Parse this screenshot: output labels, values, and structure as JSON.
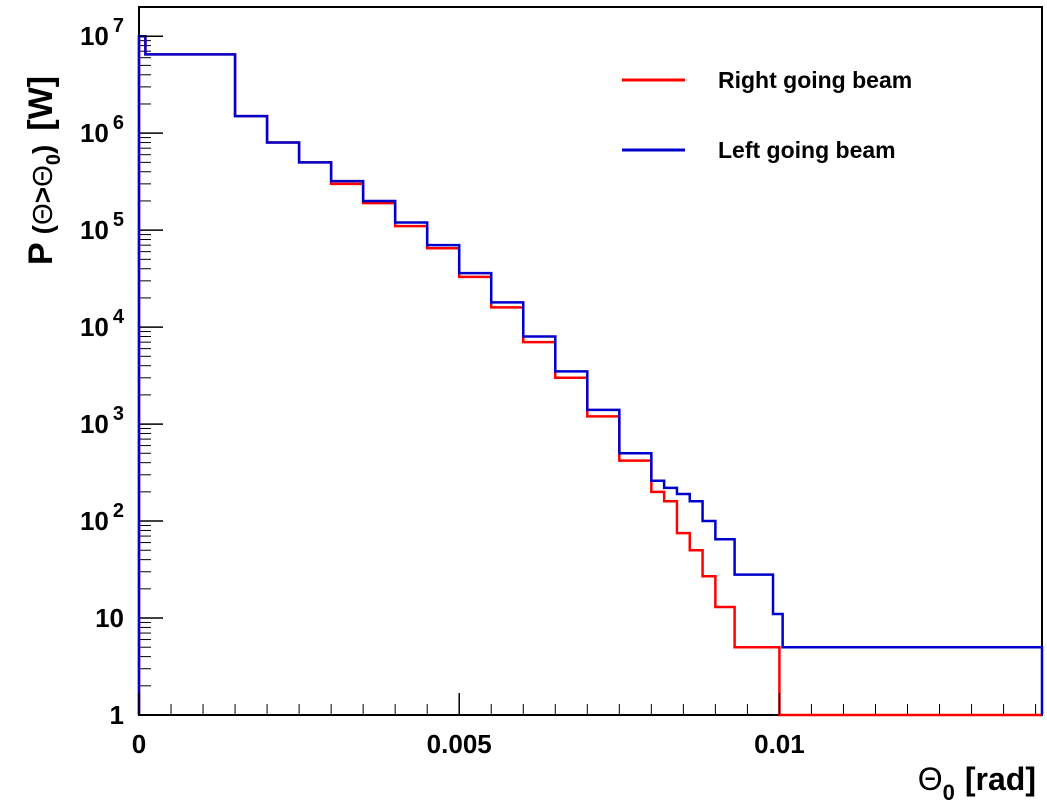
{
  "chart_data": {
    "type": "line",
    "title": "",
    "xlabel": "Θ₀ [rad]",
    "ylabel": "P (Θ>Θ₀) [W]",
    "xlabel_parts": {
      "symbol": "Θ",
      "sub": "0",
      "unit": "[rad]"
    },
    "ylabel_parts": {
      "p": "P",
      "open": "(",
      "theta": "Θ",
      "gt": ">",
      "theta0": "Θ",
      "sub": "0",
      "close": ")",
      "unit": "[W]"
    },
    "xlim": [
      0,
      0.0141
    ],
    "ylim": [
      1,
      20000000
    ],
    "y_scale": "log",
    "grid": false,
    "legend_position": "top-right",
    "x_ticks": [
      "0",
      "0.005",
      "0.01"
    ],
    "y_ticks": [
      {
        "base": "1",
        "exp": ""
      },
      {
        "base": "10",
        "exp": ""
      },
      {
        "base": "10",
        "exp": "2"
      },
      {
        "base": "10",
        "exp": "3"
      },
      {
        "base": "10",
        "exp": "4"
      },
      {
        "base": "10",
        "exp": "5"
      },
      {
        "base": "10",
        "exp": "6"
      },
      {
        "base": "10",
        "exp": "7"
      }
    ],
    "series": [
      {
        "name": "Right going beam",
        "color": "#ff0000",
        "x": [
          0,
          0.0001,
          0.0015,
          0.002,
          0.0025,
          0.003,
          0.0035,
          0.004,
          0.0045,
          0.005,
          0.0055,
          0.006,
          0.0065,
          0.007,
          0.0075,
          0.008,
          0.0082,
          0.0084,
          0.0086,
          0.0088,
          0.009,
          0.0093,
          0.0096,
          0.0099,
          0.01,
          0.0141
        ],
        "values": [
          10000000,
          6500000,
          1500000,
          800000,
          500000,
          300000,
          190000,
          110000,
          65000,
          33000,
          16000,
          7000,
          3000,
          1200,
          420,
          200,
          160,
          75,
          50,
          27,
          13,
          5,
          5,
          5,
          1,
          1
        ]
      },
      {
        "name": "Left going beam",
        "color": "#0000cc",
        "x": [
          0,
          0.0001,
          0.0015,
          0.002,
          0.0025,
          0.003,
          0.0035,
          0.004,
          0.0045,
          0.005,
          0.0055,
          0.006,
          0.0065,
          0.007,
          0.0075,
          0.008,
          0.0082,
          0.0084,
          0.0086,
          0.0088,
          0.009,
          0.0093,
          0.0096,
          0.0099,
          0.01005,
          0.0141
        ],
        "values": [
          10000000,
          6500000,
          1500000,
          800000,
          500000,
          320000,
          200000,
          120000,
          70000,
          36000,
          18000,
          8000,
          3500,
          1400,
          500,
          260,
          220,
          190,
          160,
          100,
          65,
          28,
          28,
          11,
          5,
          1
        ]
      }
    ]
  }
}
